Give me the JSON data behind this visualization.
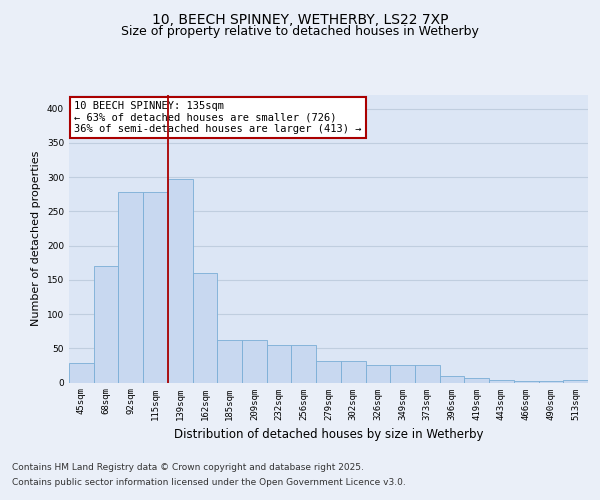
{
  "title_line1": "10, BEECH SPINNEY, WETHERBY, LS22 7XP",
  "title_line2": "Size of property relative to detached houses in Wetherby",
  "xlabel": "Distribution of detached houses by size in Wetherby",
  "ylabel": "Number of detached properties",
  "categories": [
    "45sqm",
    "68sqm",
    "92sqm",
    "115sqm",
    "139sqm",
    "162sqm",
    "185sqm",
    "209sqm",
    "232sqm",
    "256sqm",
    "279sqm",
    "302sqm",
    "326sqm",
    "349sqm",
    "373sqm",
    "396sqm",
    "419sqm",
    "443sqm",
    "466sqm",
    "490sqm",
    "513sqm"
  ],
  "values": [
    28,
    170,
    278,
    278,
    298,
    160,
    62,
    62,
    55,
    55,
    32,
    32,
    25,
    25,
    25,
    9,
    6,
    4,
    2,
    2,
    4
  ],
  "bar_color": "#c8d8f0",
  "bar_edge_color": "#7aaed6",
  "vline_index": 3,
  "vline_color": "#aa0000",
  "annotation_text": "10 BEECH SPINNEY: 135sqm\n← 63% of detached houses are smaller (726)\n36% of semi-detached houses are larger (413) →",
  "annotation_box_facecolor": "#ffffff",
  "annotation_box_edgecolor": "#aa0000",
  "ylim": [
    0,
    420
  ],
  "yticks": [
    0,
    50,
    100,
    150,
    200,
    250,
    300,
    350,
    400
  ],
  "background_color": "#eaeff8",
  "plot_bg_color": "#dce6f5",
  "grid_color": "#c0cedf",
  "footer_line1": "Contains HM Land Registry data © Crown copyright and database right 2025.",
  "footer_line2": "Contains public sector information licensed under the Open Government Licence v3.0.",
  "title_fontsize": 10,
  "subtitle_fontsize": 9,
  "tick_fontsize": 6.5,
  "ylabel_fontsize": 8,
  "xlabel_fontsize": 8.5,
  "annotation_fontsize": 7.5,
  "footer_fontsize": 6.5
}
